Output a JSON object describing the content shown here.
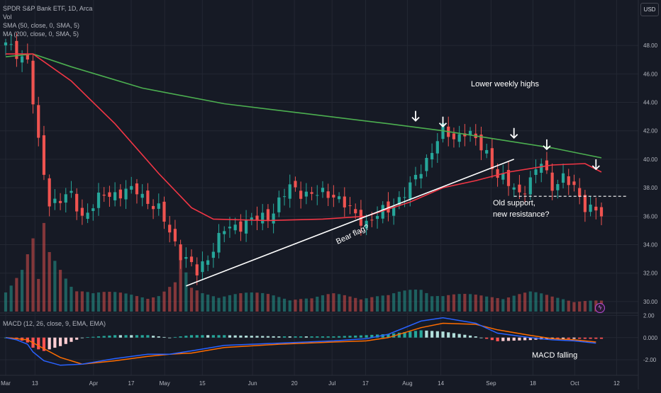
{
  "legend": {
    "title": "SPDR S&P Bank ETF, 1D, Arca",
    "vol": "Vol",
    "sma50": "SMA (50, close, 0, SMA, 5)",
    "ma200": "MA (200, close, 0, SMA, 5)",
    "macd": "MACD (12, 26, close, 9, EMA, EMA)"
  },
  "currency": "USD",
  "icons": {
    "alert": "alert-bolt-icon",
    "arrow": "arrow-down-icon"
  },
  "colors": {
    "background": "#161a25",
    "up": "#26a69a",
    "down": "#ef5350",
    "sma50": "#f23645",
    "ma200": "#4caf50",
    "macd_line": "#2962ff",
    "signal_line": "#ff6d00",
    "grid": "#232733"
  },
  "annotations": {
    "lower_weekly_highs": "Lower weekly highs",
    "bear_flag": "Bear flag?",
    "old_support_1": "Old support,",
    "old_support_2": "new resistance?",
    "macd_falling": "MACD falling"
  },
  "chart_data": [
    {
      "type": "candlestick",
      "title": "SPDR S&P Bank ETF, 1D, Arca",
      "ylim": [
        29.3,
        49.3
      ],
      "y_ticks": [
        "48.00",
        "46.00",
        "44.00",
        "42.00",
        "40.00",
        "38.00",
        "36.00",
        "34.00",
        "32.00",
        "30.00"
      ],
      "x_ticks": [
        "Mar",
        "13",
        "Apr",
        "17",
        "May",
        "15",
        "Jun",
        "20",
        "Jul",
        "17",
        "Aug",
        "14",
        "Sep",
        "18",
        "Oct",
        "12"
      ],
      "grid": true,
      "close_path": [
        [
          0,
          48.0
        ],
        [
          4,
          47.0
        ],
        [
          6,
          41.0
        ],
        [
          8,
          37.0
        ],
        [
          12,
          37.4
        ],
        [
          14,
          36.0
        ],
        [
          18,
          37.5
        ],
        [
          24,
          37.8
        ],
        [
          28,
          36.4
        ],
        [
          32,
          33.4
        ],
        [
          35,
          32.0
        ],
        [
          40,
          35.0
        ],
        [
          44,
          35.6
        ],
        [
          48,
          36.0
        ],
        [
          52,
          38.0
        ],
        [
          56,
          37.5
        ],
        [
          60,
          37.6
        ],
        [
          64,
          36.0
        ],
        [
          66,
          35.6
        ],
        [
          70,
          36.5
        ],
        [
          74,
          38.0
        ],
        [
          77,
          40.0
        ],
        [
          80,
          42.0
        ],
        [
          82,
          41.5
        ],
        [
          84,
          42.0
        ],
        [
          88,
          40.5
        ],
        [
          90,
          38.8
        ],
        [
          94,
          37.7
        ],
        [
          96,
          38.4
        ],
        [
          98,
          39.8
        ],
        [
          100,
          38.2
        ],
        [
          102,
          38.6
        ],
        [
          104,
          38.0
        ],
        [
          106,
          36.8
        ],
        [
          108,
          36.3
        ],
        [
          109,
          36.0
        ]
      ],
      "sma50_path": [
        [
          0,
          47.4
        ],
        [
          5,
          47.4
        ],
        [
          12,
          45.5
        ],
        [
          20,
          42.5
        ],
        [
          28,
          39.0
        ],
        [
          34,
          36.6
        ],
        [
          38,
          35.8
        ],
        [
          48,
          35.7
        ],
        [
          58,
          35.8
        ],
        [
          66,
          36.0
        ],
        [
          74,
          37.0
        ],
        [
          80,
          38.0
        ],
        [
          86,
          38.5
        ],
        [
          92,
          39.1
        ],
        [
          100,
          39.6
        ],
        [
          106,
          39.7
        ],
        [
          109,
          39.1
        ]
      ],
      "ma200_path": [
        [
          0,
          47.2
        ],
        [
          5,
          47.4
        ],
        [
          12,
          46.5
        ],
        [
          25,
          45.0
        ],
        [
          40,
          43.9
        ],
        [
          55,
          43.2
        ],
        [
          70,
          42.5
        ],
        [
          80,
          42.0
        ],
        [
          90,
          41.4
        ],
        [
          100,
          40.8
        ],
        [
          109,
          40.1
        ]
      ],
      "bear_flag_line": [
        [
          33,
          31.1
        ],
        [
          93,
          40.0
        ]
      ],
      "support_level": 37.4,
      "lower_high_markers": [
        [
          75,
          42.7
        ],
        [
          80,
          42.3
        ],
        [
          93,
          41.5
        ],
        [
          99,
          40.7
        ],
        [
          108,
          39.3
        ]
      ]
    },
    {
      "type": "bar",
      "title": "Vol",
      "volume_path": [
        [
          0,
          0.3
        ],
        [
          3,
          0.5
        ],
        [
          5,
          0.8
        ],
        [
          6,
          0.35
        ],
        [
          7,
          0.95
        ],
        [
          8,
          0.65
        ],
        [
          10,
          0.5
        ],
        [
          12,
          0.35
        ],
        [
          16,
          0.22
        ],
        [
          24,
          0.2
        ],
        [
          28,
          0.2
        ],
        [
          31,
          0.32
        ],
        [
          32,
          0.58
        ],
        [
          34,
          0.26
        ],
        [
          36,
          0.22
        ],
        [
          48,
          0.2
        ],
        [
          56,
          0.15
        ],
        [
          60,
          0.2
        ],
        [
          70,
          0.18
        ],
        [
          76,
          0.28
        ],
        [
          80,
          0.2
        ],
        [
          88,
          0.18
        ],
        [
          92,
          0.2
        ],
        [
          96,
          0.22
        ],
        [
          100,
          0.17
        ],
        [
          109,
          0.12
        ]
      ]
    },
    {
      "type": "line",
      "title": "MACD (12, 26, close, 9, EMA, EMA)",
      "ylim": [
        -2.9,
        2.1
      ],
      "y_ticks": [
        "2.00",
        "0.000",
        "-2.00"
      ],
      "series": [
        {
          "values": [
            [
              0,
              0.0
            ],
            [
              2,
              -0.2
            ],
            [
              4,
              -0.6
            ],
            [
              5,
              -1.3
            ],
            [
              7,
              -2.1
            ],
            [
              10,
              -2.5
            ],
            [
              14,
              -2.4
            ],
            [
              20,
              -1.9
            ],
            [
              26,
              -1.5
            ],
            [
              30,
              -1.5
            ],
            [
              34,
              -1.2
            ],
            [
              40,
              -0.7
            ],
            [
              50,
              -0.5
            ],
            [
              60,
              -0.3
            ],
            [
              66,
              -0.1
            ],
            [
              70,
              0.3
            ],
            [
              76,
              1.5
            ],
            [
              80,
              1.8
            ],
            [
              86,
              1.3
            ],
            [
              90,
              0.4
            ],
            [
              96,
              0.0
            ],
            [
              100,
              -0.2
            ],
            [
              104,
              -0.3
            ],
            [
              108,
              -0.5
            ]
          ]
        },
        {
          "values": [
            [
              0,
              0.0
            ],
            [
              4,
              -0.2
            ],
            [
              7,
              -1.0
            ],
            [
              10,
              -1.8
            ],
            [
              14,
              -2.4
            ],
            [
              20,
              -2.1
            ],
            [
              26,
              -1.7
            ],
            [
              30,
              -1.5
            ],
            [
              34,
              -1.4
            ],
            [
              40,
              -0.9
            ],
            [
              50,
              -0.6
            ],
            [
              60,
              -0.4
            ],
            [
              66,
              -0.3
            ],
            [
              70,
              0.0
            ],
            [
              76,
              0.9
            ],
            [
              80,
              1.3
            ],
            [
              86,
              1.2
            ],
            [
              90,
              0.7
            ],
            [
              96,
              0.2
            ],
            [
              100,
              -0.1
            ],
            [
              104,
              -0.2
            ],
            [
              108,
              -0.4
            ]
          ]
        }
      ]
    }
  ]
}
